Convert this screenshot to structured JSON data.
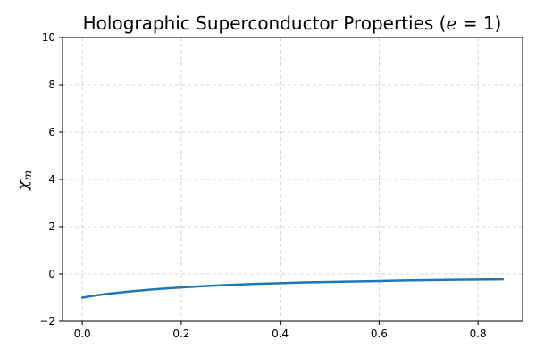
{
  "chart_data": {
    "type": "line",
    "title": {
      "main": "Holographic Superconductor Properties (",
      "var": "e",
      "rest": " = 1)"
    },
    "ylabel": {
      "symbol": "χ",
      "subscript": "m"
    },
    "xlabel": "",
    "xlim": [
      -0.04,
      0.89
    ],
    "ylim": [
      -2,
      10
    ],
    "xticks": [
      0.0,
      0.2,
      0.4,
      0.6,
      0.8
    ],
    "xtick_labels": [
      "0.0",
      "0.2",
      "0.4",
      "0.6",
      "0.8"
    ],
    "yticks": [
      -2,
      0,
      2,
      4,
      6,
      8,
      10
    ],
    "ytick_labels": [
      "−2",
      "0",
      "2",
      "4",
      "6",
      "8",
      "10"
    ],
    "grid": true,
    "series": [
      {
        "color": "#1f77b4",
        "x": [
          0.0,
          0.02,
          0.05,
          0.1,
          0.15,
          0.2,
          0.25,
          0.3,
          0.35,
          0.4,
          0.45,
          0.5,
          0.55,
          0.6,
          0.65,
          0.7,
          0.75,
          0.8,
          0.85
        ],
        "y": [
          -1.0,
          -0.93,
          -0.84,
          -0.73,
          -0.64,
          -0.57,
          -0.51,
          -0.46,
          -0.42,
          -0.39,
          -0.36,
          -0.34,
          -0.32,
          -0.3,
          -0.28,
          -0.265,
          -0.25,
          -0.24,
          -0.23
        ]
      }
    ]
  }
}
